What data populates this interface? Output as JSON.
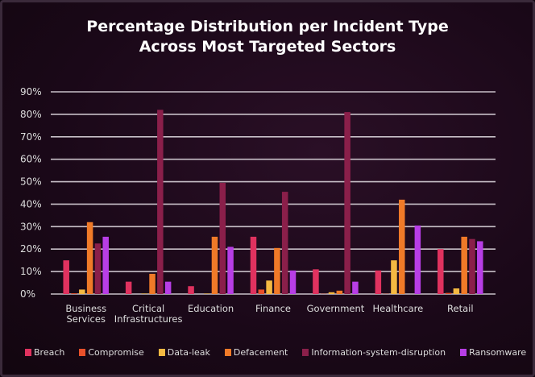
{
  "chart_data": {
    "type": "bar",
    "title": "Percentage Distribution per Incident Type Across Most Targeted Sectors",
    "title_lines": [
      "Percentage Distribution per Incident Type",
      "Across Most Targeted Sectors"
    ],
    "xlabel": "",
    "ylabel": "",
    "ylim": [
      0,
      90
    ],
    "yticks": [
      "0%",
      "10%",
      "20%",
      "30%",
      "40%",
      "50%",
      "60%",
      "70%",
      "80%",
      "90%"
    ],
    "grid": true,
    "legend_position": "bottom",
    "categories": [
      [
        "Business",
        "Services"
      ],
      [
        "Critical",
        "Infrastructures"
      ],
      [
        "Education"
      ],
      [
        "Finance"
      ],
      [
        "Government"
      ],
      [
        "Healthcare"
      ],
      [
        "Retail"
      ]
    ],
    "series": [
      {
        "name": "Breach",
        "color": "#e0325f",
        "values": [
          15,
          5.5,
          3.5,
          25.5,
          11,
          10.5,
          20
        ]
      },
      {
        "name": "Compromise",
        "color": "#e8502a",
        "values": [
          0.3,
          0,
          0,
          2,
          0.1,
          0.1,
          0.5
        ]
      },
      {
        "name": "Data-leak",
        "color": "#f4b942",
        "values": [
          2,
          0.2,
          0.2,
          6,
          0.8,
          15,
          2.5
        ]
      },
      {
        "name": "Defacement",
        "color": "#f07a28",
        "values": [
          32,
          9,
          25.5,
          20.5,
          1.5,
          42,
          25.5
        ]
      },
      {
        "name": "Information-system-disruption",
        "color": "#8a1f4a",
        "values": [
          22.5,
          82,
          49.5,
          45.5,
          81,
          0,
          24.5
        ]
      },
      {
        "name": "Ransomware",
        "color": "#b83ee6",
        "values": [
          25.5,
          5.5,
          21,
          10.5,
          5.5,
          30.5,
          23.5
        ]
      }
    ]
  }
}
